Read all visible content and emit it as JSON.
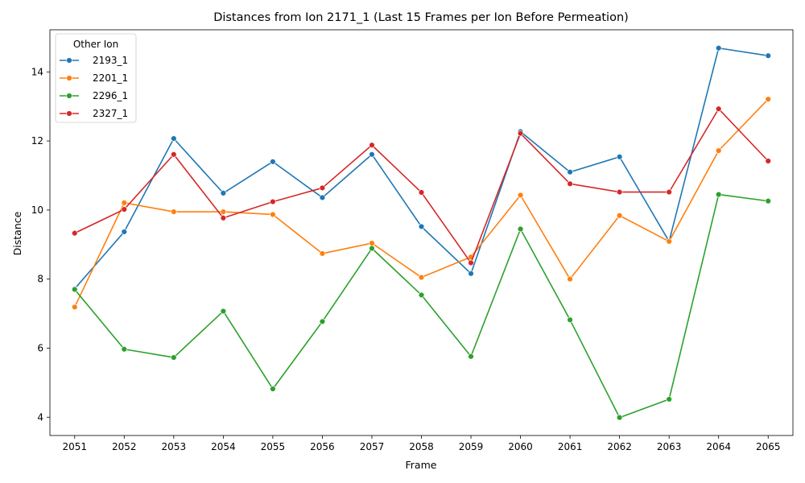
{
  "chart_data": {
    "type": "line",
    "title": "Distances from Ion 2171_1 (Last 15 Frames per Ion Before Permeation)",
    "xlabel": "Frame",
    "ylabel": "Distance",
    "x": [
      "2051",
      "2052",
      "2053",
      "2054",
      "2055",
      "2056",
      "2057",
      "2058",
      "2059",
      "2060",
      "2061",
      "2062",
      "2063",
      "2064",
      "2065"
    ],
    "yticks": [
      4,
      6,
      8,
      10,
      12,
      14
    ],
    "ylim": [
      3.47,
      15.22
    ],
    "grid": false,
    "legend": {
      "title": "Other Ion",
      "position": "top-left"
    },
    "series": [
      {
        "name": "2193_1",
        "color": "#1f77b4",
        "values": [
          7.72,
          9.37,
          12.07,
          10.49,
          11.4,
          10.36,
          11.61,
          9.52,
          8.16,
          12.27,
          11.1,
          11.54,
          9.09,
          14.69,
          14.47
        ]
      },
      {
        "name": "2201_1",
        "color": "#ff7f0e",
        "values": [
          7.19,
          10.21,
          9.95,
          9.95,
          9.87,
          8.74,
          9.04,
          8.05,
          8.64,
          10.43,
          8.0,
          9.84,
          9.09,
          11.72,
          13.21
        ]
      },
      {
        "name": "2296_1",
        "color": "#2ca02c",
        "values": [
          7.7,
          5.97,
          5.73,
          7.07,
          4.82,
          6.77,
          8.89,
          7.54,
          5.76,
          9.45,
          6.82,
          3.99,
          4.52,
          10.45,
          10.26
        ]
      },
      {
        "name": "2327_1",
        "color": "#d62728",
        "values": [
          9.33,
          10.02,
          11.61,
          9.77,
          10.24,
          10.64,
          11.88,
          10.51,
          8.47,
          12.22,
          10.76,
          10.52,
          10.52,
          12.93,
          11.42
        ]
      }
    ]
  }
}
